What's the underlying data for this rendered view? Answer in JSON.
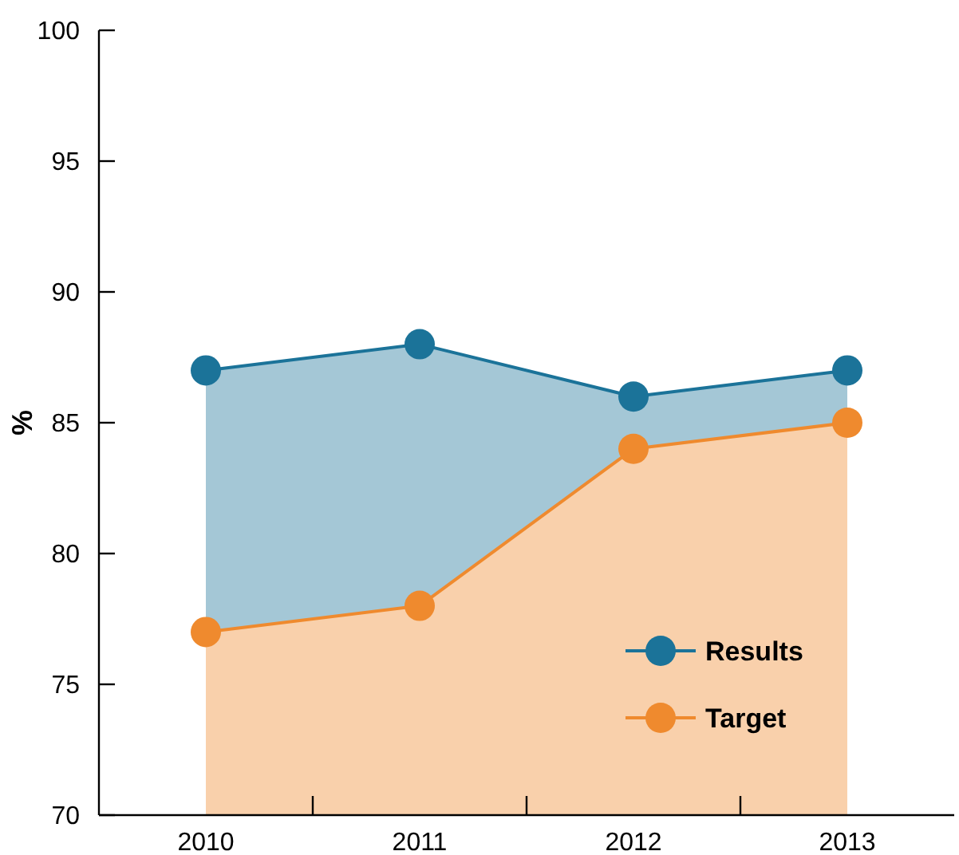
{
  "chart_data": {
    "type": "area",
    "ylabel": "%",
    "categories": [
      "2010",
      "2011",
      "2012",
      "2013"
    ],
    "series": [
      {
        "name": "Results",
        "color": "#1b7399",
        "values": [
          87,
          88,
          86,
          87
        ]
      },
      {
        "name": "Target",
        "color": "#ef8a2e",
        "values": [
          77,
          78,
          84,
          85
        ]
      }
    ],
    "ylim": [
      70,
      100
    ],
    "yticks": [
      70,
      75,
      80,
      85,
      90,
      95,
      100
    ],
    "legend": "bottom right",
    "marker": "circle",
    "grid": false
  }
}
